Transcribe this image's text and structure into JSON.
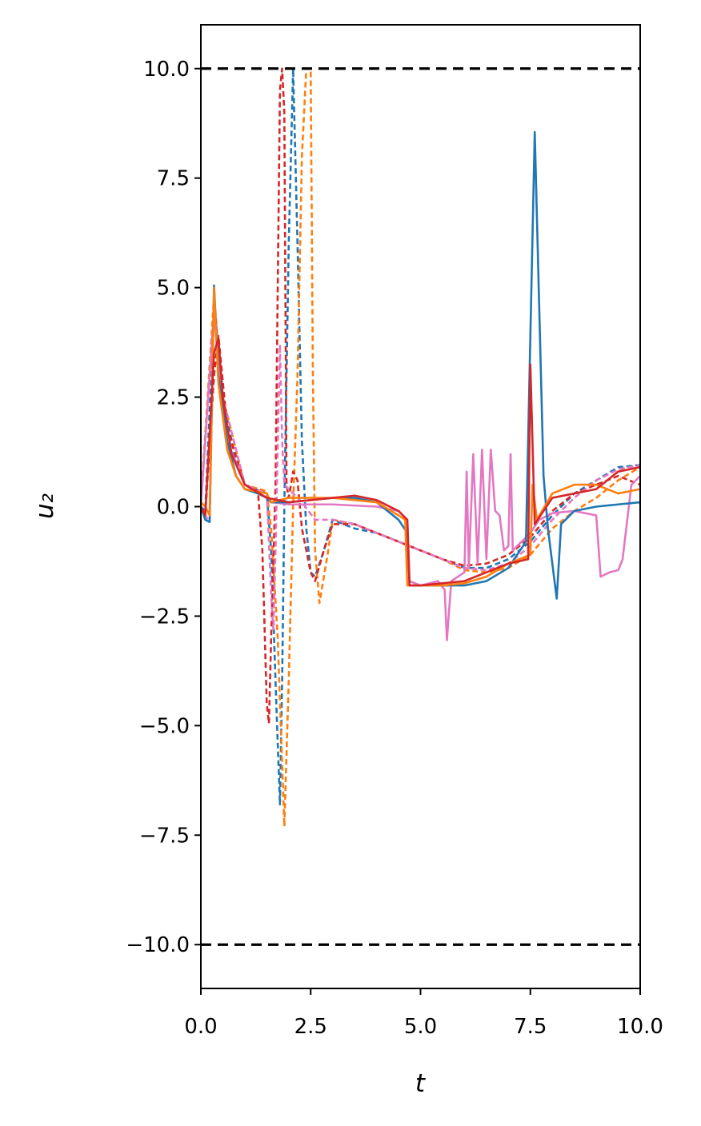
{
  "chart_data": {
    "type": "line",
    "xlabel": "t",
    "ylabel": "u₂",
    "xlim": [
      0,
      10
    ],
    "ylim": [
      -11,
      11
    ],
    "xticks": [
      {
        "value": 0,
        "label": "0.0"
      },
      {
        "value": 2.5,
        "label": "2.5"
      },
      {
        "value": 5,
        "label": "5.0"
      },
      {
        "value": 7.5,
        "label": "7.5"
      },
      {
        "value": 10,
        "label": "10.0"
      }
    ],
    "yticks": [
      {
        "value": -10,
        "label": "−10.0"
      },
      {
        "value": -7.5,
        "label": "−7.5"
      },
      {
        "value": -5,
        "label": "−5.0"
      },
      {
        "value": -2.5,
        "label": "−2.5"
      },
      {
        "value": 0,
        "label": "0.0"
      },
      {
        "value": 2.5,
        "label": "2.5"
      },
      {
        "value": 5,
        "label": "5.0"
      },
      {
        "value": 7.5,
        "label": "7.5"
      },
      {
        "value": 10,
        "label": "10.0"
      }
    ],
    "grid": false,
    "hlines": [
      {
        "y": 10,
        "color": "#000000",
        "dash": "dashed"
      },
      {
        "y": -10,
        "color": "#000000",
        "dash": "dashed"
      }
    ],
    "series": [
      {
        "color": "#1f77b4",
        "dash": "dashed",
        "x": [
          0,
          0.1,
          0.3,
          0.5,
          0.8,
          1,
          1.5,
          1.6,
          1.7,
          1.8,
          1.85,
          1.9,
          2,
          2.1,
          2.2,
          2.3,
          2.4,
          2.5,
          2.6,
          2.8,
          3,
          3.5,
          4,
          4.5,
          5,
          5.5,
          6,
          6.5,
          7,
          7.5,
          8,
          8.5,
          9,
          9.5,
          10
        ],
        "values": [
          0,
          -0.1,
          4.5,
          2.5,
          1,
          0.5,
          0.3,
          -1,
          -4,
          -6.8,
          -4,
          0,
          6,
          10,
          6,
          1.5,
          -0.5,
          -1.5,
          -1.6,
          -1,
          -0.3,
          -0.5,
          -0.6,
          -0.8,
          -1,
          -1.2,
          -1.4,
          -1.4,
          -1.2,
          -0.8,
          -0.2,
          0.3,
          0.6,
          0.9,
          0.95
        ]
      },
      {
        "color": "#ff7f0e",
        "dash": "dashed",
        "x": [
          0,
          0.3,
          0.5,
          1,
          1.5,
          1.6,
          1.75,
          1.9,
          2,
          2.1,
          2.2,
          2.3,
          2.4,
          2.5,
          2.55,
          2.6,
          2.7,
          2.9,
          3,
          3.5,
          4,
          4.5,
          5,
          5.5,
          6,
          6.5,
          7,
          7.5,
          8,
          8.5,
          9,
          9.5,
          10
        ],
        "values": [
          0.1,
          4.8,
          2.5,
          0.5,
          0.35,
          -0.5,
          -3,
          -7.3,
          -4,
          0,
          3,
          8,
          10,
          10,
          3,
          -1,
          -2.2,
          -1,
          -0.3,
          -0.4,
          -0.6,
          -0.8,
          -1,
          -1.2,
          -1.45,
          -1.5,
          -1.4,
          -1.1,
          -0.5,
          -0.1,
          0.2,
          0.6,
          0.9
        ]
      },
      {
        "color": "#d62728",
        "dash": "dashed",
        "x": [
          0,
          0.1,
          0.3,
          0.4,
          0.6,
          1,
          1.3,
          1.4,
          1.5,
          1.55,
          1.6,
          1.7,
          1.8,
          1.85,
          1.9,
          1.95,
          2,
          2.1,
          2.2,
          2.3,
          2.5,
          2.6,
          2.8,
          3,
          3.5,
          4,
          4.5,
          5,
          5.5,
          6,
          6.5,
          7,
          7.5,
          8,
          8.5,
          9,
          9.5,
          10
        ],
        "values": [
          0,
          -0.2,
          3,
          3.9,
          1.8,
          0.5,
          0.35,
          -1,
          -4.5,
          -4.95,
          -3,
          0.5,
          9.5,
          10,
          9,
          0.5,
          0.2,
          0.8,
          0.6,
          -0.5,
          -1.5,
          -1.7,
          -1,
          -0.4,
          -0.4,
          -0.6,
          -0.8,
          -1,
          -1.2,
          -1.35,
          -1.3,
          -1.1,
          -0.7,
          -0.1,
          0.3,
          0.5,
          0.7,
          0.5
        ]
      },
      {
        "color": "#e377c2",
        "dash": "dashed",
        "x": [
          0,
          0.1,
          0.2,
          0.3,
          0.5,
          1,
          1.5,
          1.6,
          1.65,
          1.7,
          1.8,
          1.85,
          1.9,
          2,
          2.3,
          2.6,
          3,
          3.5,
          4,
          4.5,
          5,
          5.5,
          6,
          6.5,
          7,
          7.5,
          8,
          8.5,
          9,
          9.5,
          10
        ],
        "values": [
          0,
          -0.2,
          -0.35,
          4.7,
          2.5,
          0.5,
          0.3,
          -2,
          -2.8,
          -1,
          3.7,
          1.5,
          0.5,
          0.4,
          0.1,
          -0.3,
          -0.3,
          -0.4,
          -0.6,
          -0.8,
          -1,
          -1.2,
          -1.4,
          -1.45,
          -1.3,
          -0.9,
          -0.3,
          0.2,
          0.6,
          0.85,
          0.95
        ]
      },
      {
        "color": "#e377c2",
        "dash": "solid",
        "x": [
          0,
          0.3,
          0.4,
          0.6,
          1,
          1.5,
          1.6,
          2,
          3,
          4,
          4.5,
          4.7,
          4.75,
          5,
          5.4,
          5.55,
          5.6,
          5.7,
          6,
          6.05,
          6.1,
          6.2,
          6.3,
          6.4,
          6.5,
          6.6,
          6.7,
          6.8,
          6.9,
          7,
          7.05,
          7.1,
          7.3,
          7.5,
          7.7,
          8,
          8.5,
          9,
          9.1,
          9.3,
          9.5,
          9.6,
          9.8,
          10
        ],
        "values": [
          0,
          4.5,
          3.2,
          1.5,
          0.5,
          0.2,
          0.1,
          0.05,
          0.05,
          0,
          -0.1,
          -0.3,
          -1.7,
          -1.8,
          -1.7,
          -1.9,
          -3.05,
          -1.7,
          -1.5,
          0.8,
          -1.4,
          1.2,
          -1.3,
          1.3,
          -1.2,
          1.3,
          -0.1,
          -0.2,
          -1,
          -0.9,
          1.2,
          -1,
          -0.8,
          -0.6,
          -0.3,
          -0.15,
          -0.1,
          -0.2,
          -1.6,
          -1.5,
          -1.45,
          -1.2,
          0.5,
          0.7
        ]
      },
      {
        "color": "#1f77b4",
        "dash": "solid",
        "x": [
          0,
          0.1,
          0.2,
          0.3,
          0.4,
          0.6,
          0.8,
          1,
          1.3,
          1.5,
          1.6,
          2,
          3,
          3.5,
          4,
          4.5,
          4.7,
          4.75,
          5,
          5.5,
          6,
          6.5,
          7,
          7.4,
          7.6,
          7.8,
          7.9,
          8.1,
          8.2,
          8.5,
          9,
          9.5,
          10
        ],
        "values": [
          0,
          -0.3,
          -0.35,
          5.05,
          3,
          1.5,
          0.7,
          0.4,
          0.3,
          0.2,
          0.1,
          0.1,
          0.2,
          0.2,
          0.1,
          -0.3,
          -0.6,
          -1.8,
          -1.8,
          -1.8,
          -1.8,
          -1.7,
          -1.4,
          -0.8,
          8.55,
          0.7,
          -0.5,
          -2.1,
          -0.4,
          -0.1,
          0,
          0.05,
          0.1
        ]
      },
      {
        "color": "#ff7f0e",
        "dash": "solid",
        "x": [
          0,
          0.1,
          0.2,
          0.3,
          0.4,
          0.6,
          0.8,
          1,
          1.5,
          1.6,
          2,
          3,
          4,
          4.5,
          4.65,
          4.7,
          5,
          5.5,
          6,
          6.5,
          7,
          7.5,
          7.55,
          7.65,
          8,
          8.5,
          9,
          9.5,
          10
        ],
        "values": [
          0.1,
          0,
          -0.2,
          5,
          2.8,
          1.3,
          0.7,
          0.4,
          0.3,
          0.1,
          0.2,
          0.2,
          0.1,
          -0.2,
          -0.3,
          -1.8,
          -1.8,
          -1.8,
          -1.75,
          -1.6,
          -1.3,
          -1.1,
          0.5,
          -0.3,
          0.3,
          0.5,
          0.5,
          0.3,
          0.4
        ]
      },
      {
        "color": "#d62728",
        "dash": "solid",
        "x": [
          0,
          0.1,
          0.3,
          0.4,
          0.5,
          0.7,
          1,
          1.5,
          2,
          3,
          3.5,
          4,
          4.5,
          4.7,
          4.75,
          5,
          5.5,
          6,
          6.5,
          7,
          7.45,
          7.5,
          7.6,
          8,
          8.5,
          9,
          9.5,
          10
        ],
        "values": [
          0,
          -0.2,
          3.5,
          3.85,
          2.5,
          1.2,
          0.5,
          0.2,
          0.1,
          0.2,
          0.25,
          0.15,
          -0.1,
          -0.3,
          -1.8,
          -1.8,
          -1.75,
          -1.7,
          -1.5,
          -1.3,
          -1.2,
          3.25,
          -0.4,
          0.2,
          0.3,
          0.4,
          0.8,
          0.9
        ]
      }
    ]
  }
}
